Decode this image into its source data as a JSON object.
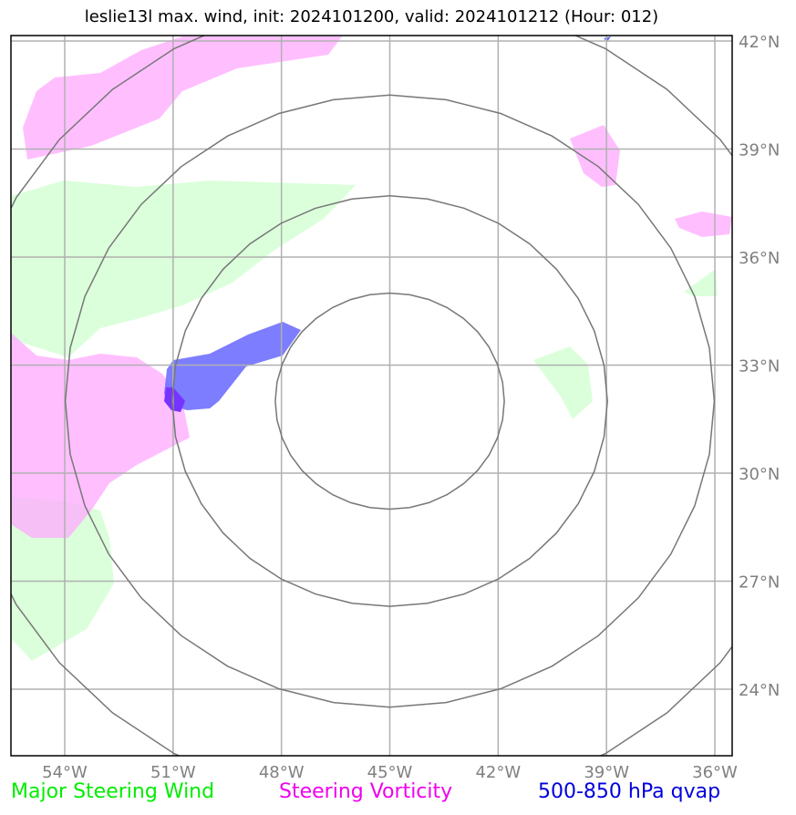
{
  "title": "leslie13l max. wind, init: 2024101200, valid: 2024101212 (Hour: 012)",
  "map": {
    "lon_range": [
      -56,
      -35.5
    ],
    "lat_range": [
      22,
      42.2
    ],
    "lon_ticks": [
      -54,
      -51,
      -48,
      -45,
      -42,
      -39,
      -36
    ],
    "lon_tick_labels": [
      "54°W",
      "51°W",
      "48°W",
      "45°W",
      "42°W",
      "39°W",
      "36°W"
    ],
    "lat_ticks": [
      24,
      27,
      30,
      33,
      36,
      39,
      42
    ],
    "lat_tick_labels": [
      "24°N",
      "27°N",
      "30°N",
      "33°N",
      "36°N",
      "39°N",
      "42°N"
    ],
    "range_rings_center": {
      "lon": -45.0,
      "lat": 32.0
    },
    "range_rings_deg": [
      3,
      5.7,
      8.5,
      11.3
    ]
  },
  "layers": [
    {
      "name": "Major Steering Wind",
      "color": "#ccffcc"
    },
    {
      "name": "Steering Vorticity",
      "color": "#ffaaff"
    },
    {
      "name": "500-850 hPa qvap",
      "color": "#6666ff"
    }
  ],
  "legend": [
    {
      "label": "Major Steering Wind",
      "color": "#00ee00"
    },
    {
      "label": "Steering Vorticity",
      "color": "#ee00ee"
    },
    {
      "label": "500-850 hPa qvap",
      "color": "#0000dd"
    }
  ]
}
